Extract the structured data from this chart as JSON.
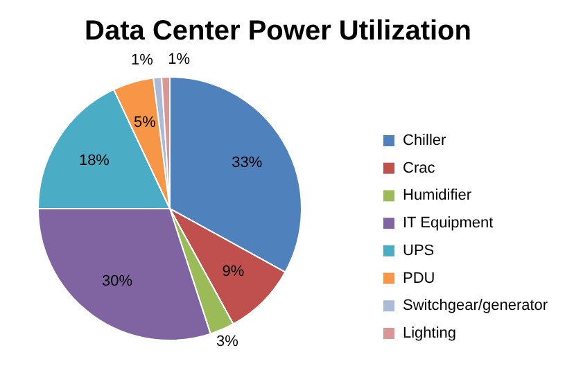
{
  "chart_data": {
    "type": "pie",
    "title": "Data Center Power Utilization",
    "categories": [
      "Chiller",
      "Crac",
      "Humidifier",
      "IT Equipment",
      "UPS",
      "PDU",
      "Switchgear/generator",
      "Lighting"
    ],
    "values": [
      33,
      9,
      3,
      30,
      18,
      5,
      1,
      1
    ],
    "colors": [
      "#4f81bd",
      "#c0504d",
      "#9bbb59",
      "#8064a2",
      "#4bacc6",
      "#f79646",
      "#aabad7",
      "#d99694"
    ],
    "value_labels": [
      "33%",
      "9%",
      "3%",
      "30%",
      "18%",
      "5%",
      "1%",
      "1%"
    ],
    "legend": "right"
  }
}
